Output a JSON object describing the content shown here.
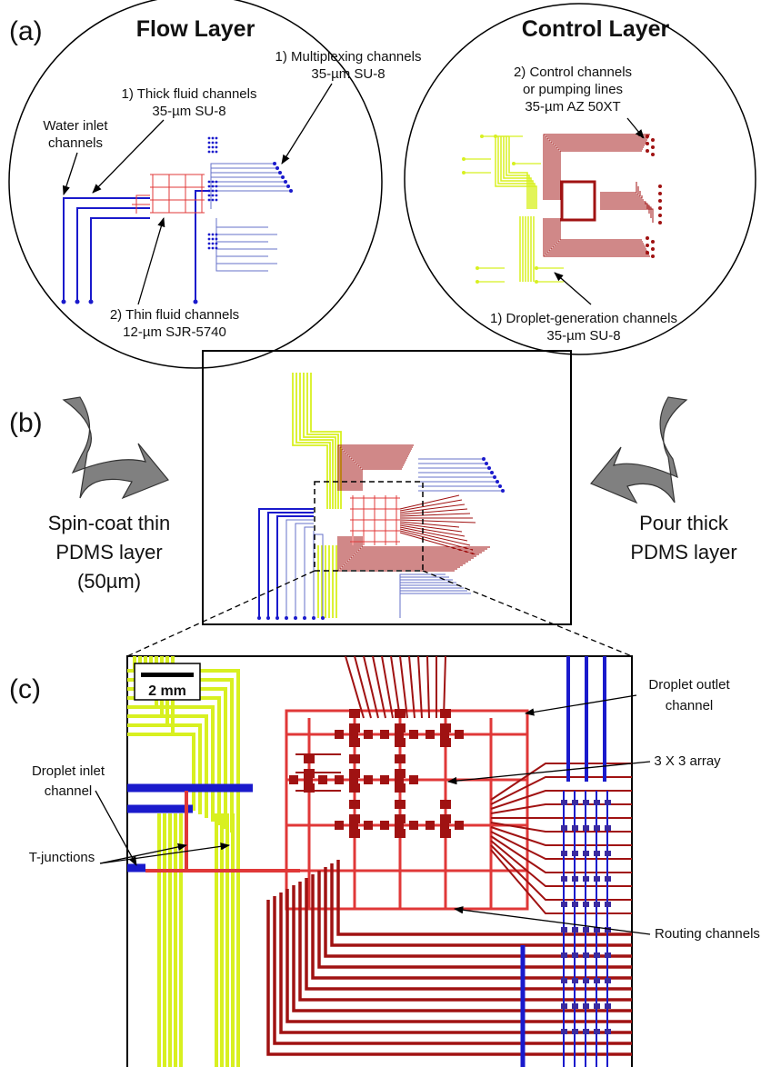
{
  "panel_a": {
    "label": "(a)",
    "flow_layer": {
      "title": "Flow Layer",
      "multiplexing": [
        "1) Multiplexing channels",
        "35-µm SU-8"
      ],
      "thick_fluid": [
        "1) Thick fluid channels",
        "35-µm SU-8"
      ],
      "water_inlet": [
        "Water inlet",
        "channels"
      ],
      "thin_fluid": [
        "2) Thin fluid channels",
        "12-µm SJR-5740"
      ]
    },
    "control_layer": {
      "title": "Control Layer",
      "control_channels": [
        "2) Control channels",
        "or pumping lines",
        "35-µm AZ 50XT"
      ],
      "droplet_generation": [
        "1) Droplet-generation channels",
        "35-µm SU-8"
      ]
    }
  },
  "panel_b": {
    "label": "(b)",
    "left_note": [
      "Spin-coat thin",
      "PDMS layer",
      "(50µm)"
    ],
    "right_note": [
      "Pour thick",
      "PDMS layer"
    ]
  },
  "panel_c": {
    "label": "(c)",
    "scale_bar": "2 mm",
    "droplet_outlet": [
      "Droplet outlet",
      "channel"
    ],
    "array": "3 X 3 array",
    "droplet_inlet": [
      "Droplet inlet",
      "channel"
    ],
    "t_junctions": "T-junctions",
    "routing": "Routing channels"
  }
}
